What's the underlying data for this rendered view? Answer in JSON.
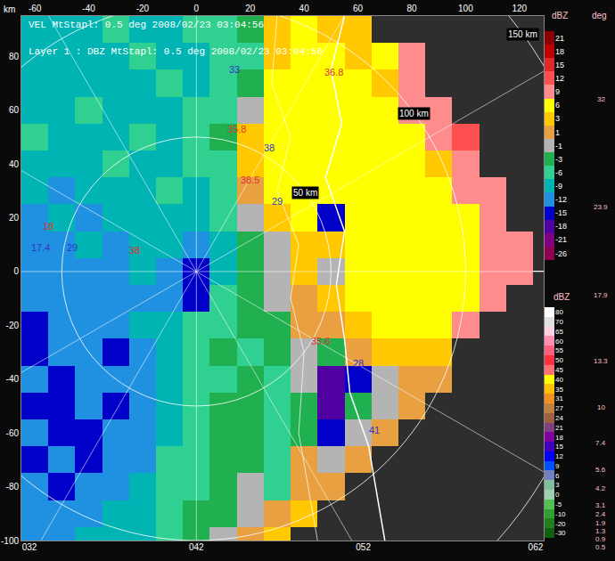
{
  "chart_data": {
    "type": "heatmap",
    "title": "VEL MtStapl: 0.5 deg 2008/02/23 03:04:56",
    "subtitle": "Layer 1 : DBZ MtStapl: 0.5 deg 2008/02/23 03:04:56",
    "y_label": "km",
    "x": [
      -60,
      -50,
      -40,
      -30,
      -20,
      -10,
      0,
      10,
      20,
      30,
      40,
      50,
      60,
      70,
      80,
      90,
      100,
      110,
      120
    ],
    "y": [
      90,
      80,
      70,
      60,
      50,
      40,
      30,
      20,
      10,
      0,
      -10,
      -20,
      -30,
      -40,
      -50,
      -60,
      -70,
      -80,
      -90,
      -100
    ],
    "values": [
      [
        -9,
        -9,
        -9,
        -6,
        -9,
        -9,
        -6,
        -6,
        -3,
        3,
        6,
        3,
        3,
        null,
        null,
        null,
        null,
        null,
        null
      ],
      [
        -9,
        -9,
        -9,
        -9,
        -6,
        -9,
        -9,
        -6,
        -6,
        3,
        6,
        6,
        3,
        6,
        9,
        null,
        null,
        null,
        null
      ],
      [
        -9,
        -9,
        -9,
        -9,
        -9,
        -6,
        -9,
        -6,
        -3,
        6,
        6,
        6,
        6,
        3,
        9,
        null,
        null,
        null,
        null
      ],
      [
        -9,
        -9,
        -6,
        -9,
        -9,
        -9,
        -6,
        -6,
        -1,
        6,
        6,
        6,
        6,
        6,
        9,
        9,
        null,
        null,
        null
      ],
      [
        -6,
        -9,
        -9,
        -9,
        -6,
        -9,
        -6,
        -3,
        3,
        6,
        6,
        6,
        6,
        6,
        6,
        9,
        12,
        null,
        null
      ],
      [
        -9,
        -9,
        -9,
        -6,
        -9,
        -9,
        -6,
        -6,
        3,
        6,
        6,
        6,
        6,
        6,
        6,
        3,
        9,
        null,
        null
      ],
      [
        -9,
        -12,
        -9,
        -9,
        -9,
        -6,
        -9,
        -6,
        1,
        6,
        6,
        6,
        6,
        6,
        6,
        6,
        9,
        9,
        null
      ],
      [
        -12,
        -9,
        -12,
        -9,
        -9,
        -9,
        -9,
        -6,
        -1,
        3,
        6,
        -15,
        6,
        6,
        6,
        6,
        6,
        9,
        null
      ],
      [
        -12,
        -12,
        -9,
        -12,
        -9,
        -9,
        -12,
        -9,
        -3,
        -1,
        3,
        3,
        6,
        6,
        6,
        6,
        6,
        9,
        9
      ],
      [
        -12,
        -12,
        -12,
        -12,
        -9,
        -12,
        -15,
        -9,
        -3,
        -1,
        3,
        -1,
        6,
        6,
        6,
        6,
        6,
        9,
        9
      ],
      [
        -12,
        -12,
        -12,
        -12,
        -12,
        -12,
        -15,
        -6,
        -3,
        -1,
        1,
        3,
        6,
        6,
        6,
        6,
        6,
        9,
        null
      ],
      [
        -15,
        -12,
        -12,
        -12,
        -9,
        -9,
        -6,
        -6,
        -3,
        -3,
        1,
        1,
        3,
        6,
        6,
        6,
        9,
        null,
        null
      ],
      [
        -15,
        -12,
        -12,
        -15,
        -12,
        -9,
        -6,
        -3,
        -6,
        -3,
        -1,
        -3,
        1,
        3,
        3,
        3,
        null,
        null,
        null
      ],
      [
        -12,
        -15,
        -12,
        -12,
        -12,
        -9,
        -6,
        -6,
        -3,
        -6,
        -1,
        -18,
        -15,
        -1,
        1,
        1,
        null,
        null,
        null
      ],
      [
        -15,
        -15,
        -12,
        -15,
        -12,
        -9,
        -6,
        -3,
        -3,
        -6,
        -3,
        -18,
        -3,
        -1,
        1,
        null,
        null,
        null,
        null
      ],
      [
        -12,
        -15,
        -15,
        -12,
        -12,
        -9,
        -6,
        -3,
        -3,
        -6,
        -3,
        -15,
        -1,
        1,
        null,
        null,
        null,
        null,
        null
      ],
      [
        -15,
        -12,
        -15,
        -12,
        -12,
        -6,
        -6,
        -3,
        -3,
        -6,
        1,
        -1,
        1,
        null,
        null,
        null,
        null,
        null,
        null
      ],
      [
        -12,
        -15,
        -12,
        -12,
        -9,
        -6,
        -6,
        -3,
        -1,
        -6,
        1,
        1,
        null,
        null,
        null,
        null,
        null,
        null,
        null
      ],
      [
        -12,
        -12,
        -12,
        -9,
        -9,
        -6,
        -3,
        -3,
        -1,
        1,
        3,
        null,
        null,
        null,
        null,
        null,
        null,
        null,
        null
      ],
      [
        -12,
        -12,
        -9,
        -9,
        -9,
        -6,
        -3,
        -1,
        1,
        3,
        null,
        null,
        null,
        null,
        null,
        null,
        null,
        null,
        null
      ]
    ],
    "xlim": [
      -65,
      129
    ],
    "xticks": [
      -60,
      -40,
      -20,
      0,
      20,
      40,
      60,
      80,
      100,
      120
    ],
    "ylim": [
      -100,
      95
    ],
    "yticks": [
      -100,
      -80,
      -60,
      -40,
      -20,
      0,
      20,
      40,
      60,
      80
    ],
    "x2ticks": [
      {
        "value": -62,
        "label": "032"
      },
      {
        "value": 0,
        "label": "042"
      },
      {
        "value": 62,
        "label": "052"
      },
      {
        "value": 126,
        "label": "062"
      }
    ],
    "rings": [
      {
        "radius": 50,
        "label": "50 km"
      },
      {
        "radius": 100,
        "label": "100 km"
      },
      {
        "radius": 150,
        "label": "150 km"
      }
    ],
    "annotations": [
      {
        "x": 14,
        "y": 75,
        "text": "33",
        "color": "#3333cc"
      },
      {
        "x": 51,
        "y": 74,
        "text": "36.8",
        "color": "#e03030"
      },
      {
        "x": 15,
        "y": 53,
        "text": "35.8",
        "color": "#e03030"
      },
      {
        "x": 27,
        "y": 46,
        "text": "38",
        "color": "#3333cc"
      },
      {
        "x": 20,
        "y": 34,
        "text": "38.5",
        "color": "#e03030"
      },
      {
        "x": 30,
        "y": 26,
        "text": "29",
        "color": "#3333cc"
      },
      {
        "x": -55,
        "y": 17,
        "text": "18",
        "color": "#e03030"
      },
      {
        "x": -58,
        "y": 9,
        "text": "17.4",
        "color": "#3333cc"
      },
      {
        "x": -46,
        "y": 9,
        "text": "29",
        "color": "#3333cc"
      },
      {
        "x": -23,
        "y": 8,
        "text": "38",
        "color": "#e03030"
      },
      {
        "x": 46,
        "y": -26,
        "text": "35.6",
        "color": "#e03030"
      },
      {
        "x": 60,
        "y": -34,
        "text": "28",
        "color": "#3333cc"
      },
      {
        "x": 66,
        "y": -59,
        "text": "41",
        "color": "#3333cc"
      }
    ],
    "colorbars": [
      {
        "title": "dBZ",
        "levels": [
          21,
          18,
          15,
          12,
          9,
          6,
          3,
          1,
          -1,
          -3,
          -6,
          -9,
          -12,
          -15,
          -18,
          -21,
          -26
        ],
        "colors": [
          "#8b0000",
          "#c00000",
          "#e02828",
          "#ff5050",
          "#ff8c8c",
          "#ffff00",
          "#ffc800",
          "#e8a040",
          "#b4b4b4",
          "#20b050",
          "#30d090",
          "#00b4b4",
          "#2090e0",
          "#0000c8",
          "#5000a0",
          "#800080",
          "#900050"
        ]
      },
      {
        "title": "dBZ",
        "levels": [
          80,
          70,
          65,
          60,
          55,
          50,
          45,
          40,
          35,
          31,
          27,
          24,
          21,
          18,
          15,
          12,
          9,
          6,
          3,
          0,
          -5,
          -10,
          -20,
          -30
        ],
        "colors": [
          "#ffffff",
          "#e0e0e0",
          "#ffd0e0",
          "#ff90b0",
          "#ff6080",
          "#ff3040",
          "#ff7070",
          "#ffff00",
          "#ffc000",
          "#f09020",
          "#c08040",
          "#a06040",
          "#804080",
          "#8000a0",
          "#4000c0",
          "#0000ff",
          "#0050ff",
          "#7080c0",
          "#80c0a0",
          "#a0d0b0",
          "#50c050",
          "#30a030",
          "#208020",
          "#106010"
        ]
      }
    ],
    "deg_labels": {
      "title": "deg",
      "values": [
        32,
        23.9,
        17.9,
        13.3,
        10,
        7.4,
        5.6,
        4.2,
        3.1,
        2.4,
        1.9,
        1.3,
        0.9,
        0.5
      ]
    }
  }
}
